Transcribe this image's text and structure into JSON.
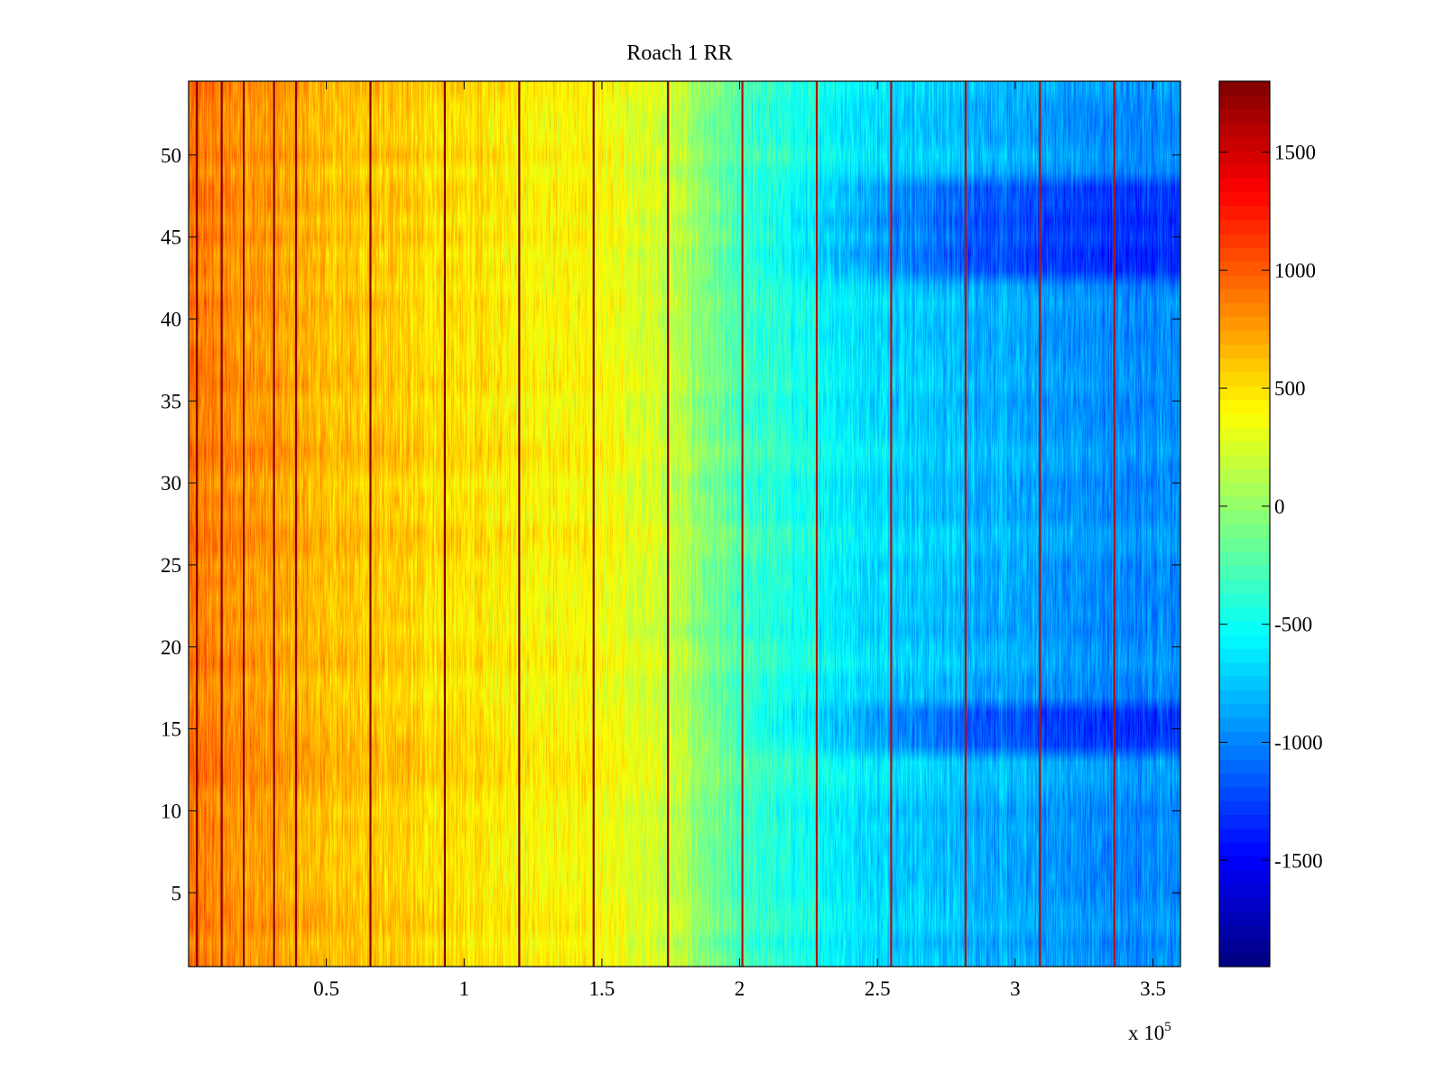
{
  "chart_data": {
    "type": "heatmap",
    "title": "Roach 1 RR",
    "xlabel": "",
    "ylabel": "",
    "x_exponent_label": "x 10",
    "x_exponent_power": "5",
    "xlim": [
      0,
      360000
    ],
    "ylim": [
      0.5,
      54.5
    ],
    "x_ticks": [
      50000,
      100000,
      150000,
      200000,
      250000,
      300000,
      350000
    ],
    "x_tick_labels": [
      "0.5",
      "1",
      "1.5",
      "2",
      "2.5",
      "3",
      "3.5"
    ],
    "y_ticks": [
      5,
      10,
      15,
      20,
      25,
      30,
      35,
      40,
      45,
      50
    ],
    "y_tick_labels": [
      "5",
      "10",
      "15",
      "20",
      "25",
      "30",
      "35",
      "40",
      "45",
      "50"
    ],
    "rows": 54,
    "colormap": "jet",
    "clim": [
      -1950,
      1800
    ],
    "colorbar_ticks": [
      1500,
      1000,
      500,
      0,
      -500,
      -1000,
      -1500
    ],
    "colorbar_tick_labels": [
      "1500",
      "1000",
      "500",
      "0",
      "-500",
      "-1000",
      "-1500"
    ],
    "value_profile_x": [
      0,
      20000,
      50000,
      100000,
      150000,
      175000,
      200000,
      250000,
      300000,
      330000,
      360000
    ],
    "value_profile": [
      900,
      800,
      650,
      500,
      380,
      200,
      -300,
      -650,
      -850,
      -950,
      -950
    ],
    "strong_negative_rows": [
      14,
      15,
      16,
      43,
      44,
      45,
      46,
      47,
      48
    ],
    "vertical_stripes_x": [
      3000,
      12000,
      20000,
      31000,
      39000,
      66000,
      93000,
      120000,
      147000,
      174000,
      201000,
      228000,
      255000,
      282000,
      309000,
      336000
    ]
  }
}
